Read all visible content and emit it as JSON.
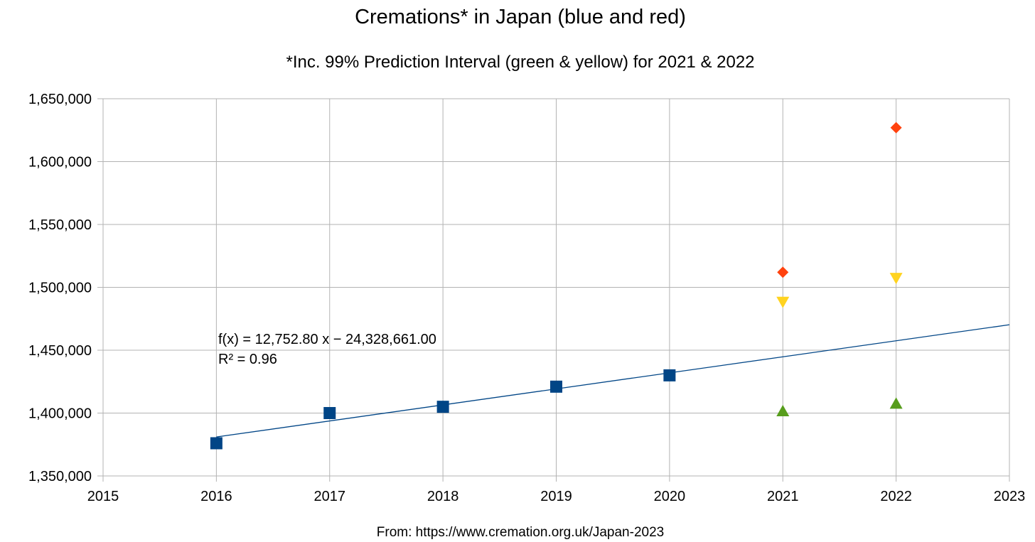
{
  "chart_data": {
    "type": "scatter",
    "title": "Cremations* in Japan (blue and red)",
    "subtitle": "*Inc. 99% Prediction Interval (green & yellow) for 2021 & 2022",
    "source": "From: https://www.cremation.org.uk/Japan-2023",
    "xlabel": "",
    "ylabel": "",
    "xlim": [
      2015,
      2023
    ],
    "ylim": [
      1350000,
      1650000
    ],
    "x_ticks": [
      2015,
      2016,
      2017,
      2018,
      2019,
      2020,
      2021,
      2022,
      2023
    ],
    "y_ticks": [
      1350000,
      1400000,
      1450000,
      1500000,
      1550000,
      1600000,
      1650000
    ],
    "grid": true,
    "legend": "none",
    "series": [
      {
        "marker": "square",
        "color": "#004586",
        "points": [
          {
            "x": 2016,
            "y": 1376000
          },
          {
            "x": 2017,
            "y": 1400000
          },
          {
            "x": 2018,
            "y": 1405000
          },
          {
            "x": 2019,
            "y": 1421000
          },
          {
            "x": 2020,
            "y": 1430000
          }
        ]
      },
      {
        "marker": "diamond",
        "color": "#ff420e",
        "points": [
          {
            "x": 2021,
            "y": 1512000
          },
          {
            "x": 2022,
            "y": 1627000
          }
        ]
      },
      {
        "marker": "triangle-down",
        "color": "#ffd320",
        "points": [
          {
            "x": 2021,
            "y": 1488000
          },
          {
            "x": 2022,
            "y": 1507000
          }
        ]
      },
      {
        "marker": "triangle-up",
        "color": "#579d1c",
        "points": [
          {
            "x": 2021,
            "y": 1402000
          },
          {
            "x": 2022,
            "y": 1408000
          }
        ]
      }
    ],
    "trendline": {
      "slope": 12752.8,
      "intercept": -24328661,
      "color": "#004586",
      "equation": "f(x) = 12,752.80 x − 24,328,661.00",
      "r_squared": "R² = 0.96"
    }
  }
}
